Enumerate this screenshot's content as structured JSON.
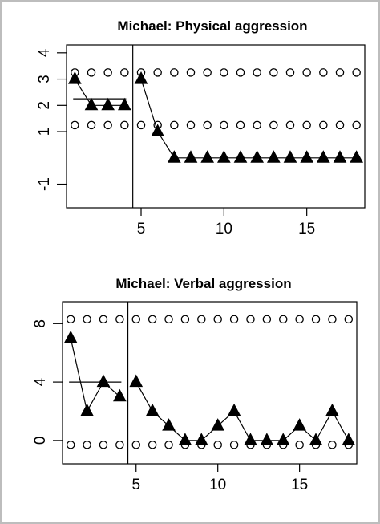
{
  "chart_data": [
    {
      "type": "line",
      "title": "Michael: Physical aggression",
      "xlabel": "",
      "ylabel": "",
      "xlim": [
        0.5,
        18.5
      ],
      "ylim": [
        -1.9,
        4.3
      ],
      "x_ticks": [
        5,
        10,
        15
      ],
      "y_ticks": [
        -1,
        1,
        2,
        3,
        4
      ],
      "phase_change_x": 4.5,
      "baseline_mean": {
        "x": [
          1,
          4
        ],
        "y": 2.25
      },
      "upper_limit": 3.25,
      "lower_limit": 1.25,
      "series": [
        {
          "x": [
            1,
            2,
            3,
            4,
            5,
            6,
            7,
            8,
            9,
            10,
            11,
            12,
            13,
            14,
            15,
            16,
            17,
            18
          ],
          "values": [
            3,
            2,
            2,
            2,
            3,
            1,
            0,
            0,
            0,
            0,
            0,
            0,
            0,
            0,
            0,
            0,
            0,
            0
          ],
          "segments": [
            [
              0,
              3
            ],
            [
              4,
              17
            ]
          ]
        }
      ],
      "grid": false
    },
    {
      "type": "line",
      "title": "Michael: Verbal aggression",
      "xlabel": "",
      "ylabel": "",
      "xlim": [
        0.5,
        18.5
      ],
      "ylim": [
        -1.6,
        9.5
      ],
      "x_ticks": [
        5,
        10,
        15
      ],
      "y_ticks": [
        0,
        4,
        8
      ],
      "phase_change_x": 4.5,
      "baseline_mean": {
        "x": [
          1,
          4
        ],
        "y": 4
      },
      "upper_limit": 8.3,
      "lower_limit": -0.3,
      "series": [
        {
          "x": [
            1,
            2,
            3,
            4,
            5,
            6,
            7,
            8,
            9,
            10,
            11,
            12,
            13,
            14,
            15,
            16,
            17,
            18
          ],
          "values": [
            7,
            2,
            4,
            3,
            4,
            2,
            1,
            0,
            0,
            1,
            2,
            0,
            0,
            0,
            1,
            0,
            2,
            0
          ],
          "segments": [
            [
              0,
              3
            ],
            [
              4,
              17
            ]
          ]
        }
      ],
      "grid": false
    }
  ]
}
